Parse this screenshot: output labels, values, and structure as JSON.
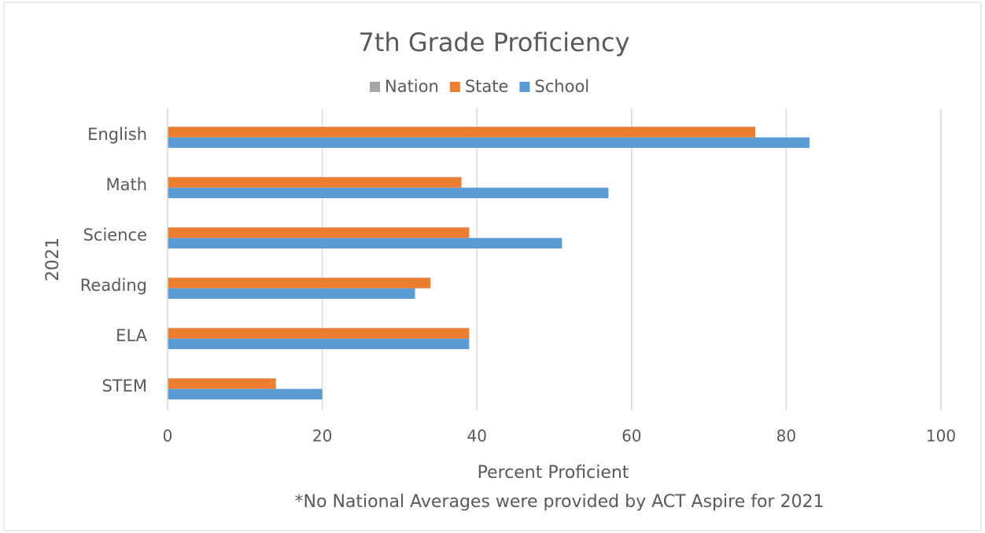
{
  "chart_data": {
    "type": "bar",
    "orientation": "horizontal",
    "title": "7th Grade Proficiency",
    "categories": [
      "English",
      "Math",
      "Science",
      "Reading",
      "ELA",
      "STEM"
    ],
    "series": [
      {
        "name": "Nation",
        "color": "#a5a5a5",
        "values": [
          null,
          null,
          null,
          null,
          null,
          null
        ]
      },
      {
        "name": "State",
        "color": "#ed7d31",
        "values": [
          76,
          38,
          39,
          34,
          39,
          14
        ]
      },
      {
        "name": "School",
        "color": "#5b9bd5",
        "values": [
          83,
          57,
          51,
          32,
          39,
          20
        ]
      }
    ],
    "xlim": [
      0,
      100
    ],
    "xticks": [
      0,
      20,
      40,
      60,
      80,
      100
    ],
    "grid": true,
    "legend": "top",
    "ylabel": "2021",
    "xlabel": "Percent Proficient",
    "annotation": "*No National Averages were provided by ACT Aspire for 2021"
  }
}
